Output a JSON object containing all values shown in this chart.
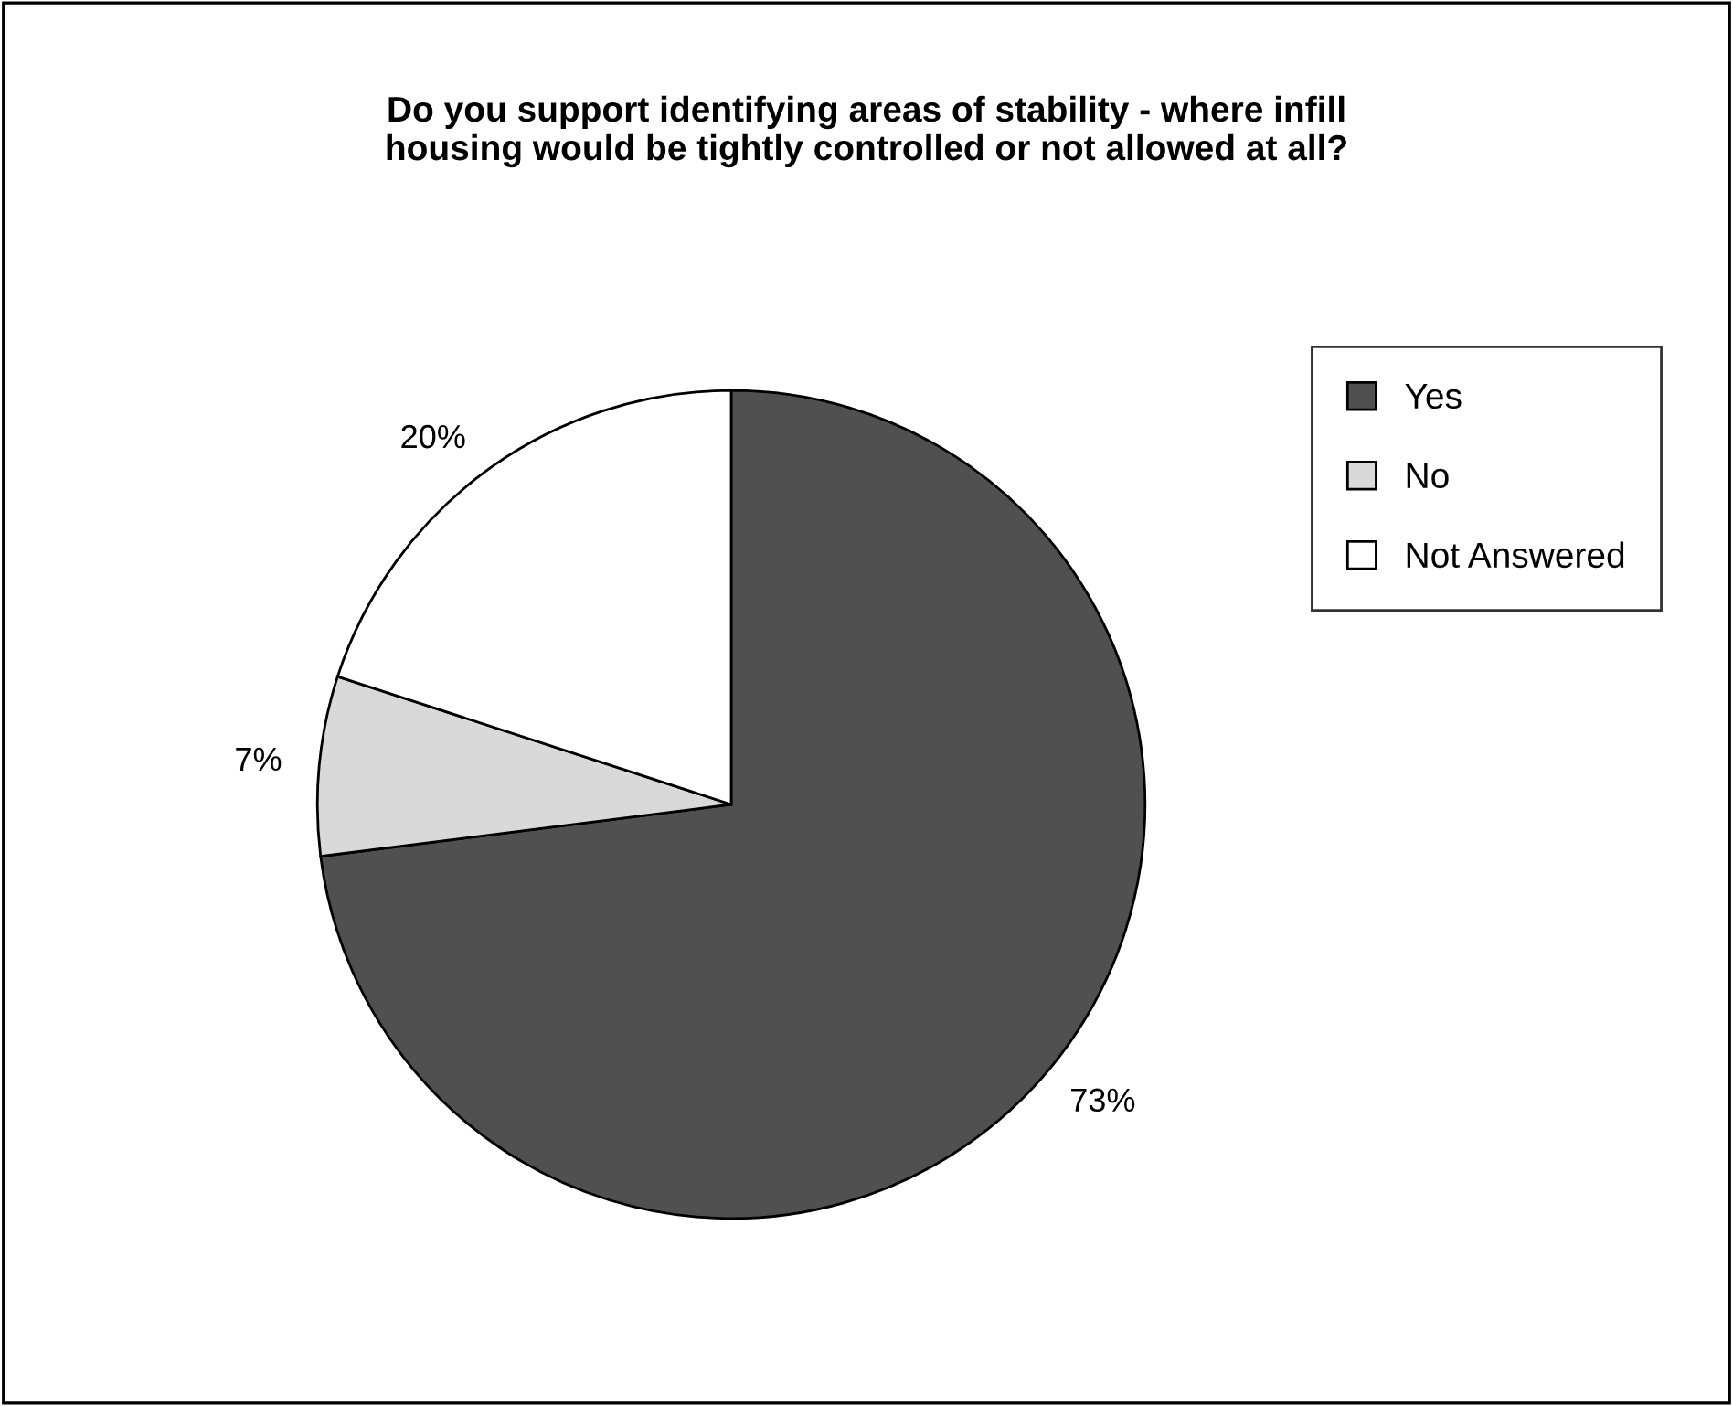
{
  "chart_data": {
    "type": "pie",
    "title": "Do you support identifying areas of stability - where infill\nhousing would be tightly controlled or not allowed at all?",
    "categories": [
      "Yes",
      "No",
      "Not Answered"
    ],
    "values": [
      73,
      7,
      20
    ],
    "value_labels": [
      "73%",
      "7%",
      "20%"
    ],
    "colors": [
      "#505050",
      "#d9d9d9",
      "#ffffff"
    ],
    "legend": "right"
  }
}
